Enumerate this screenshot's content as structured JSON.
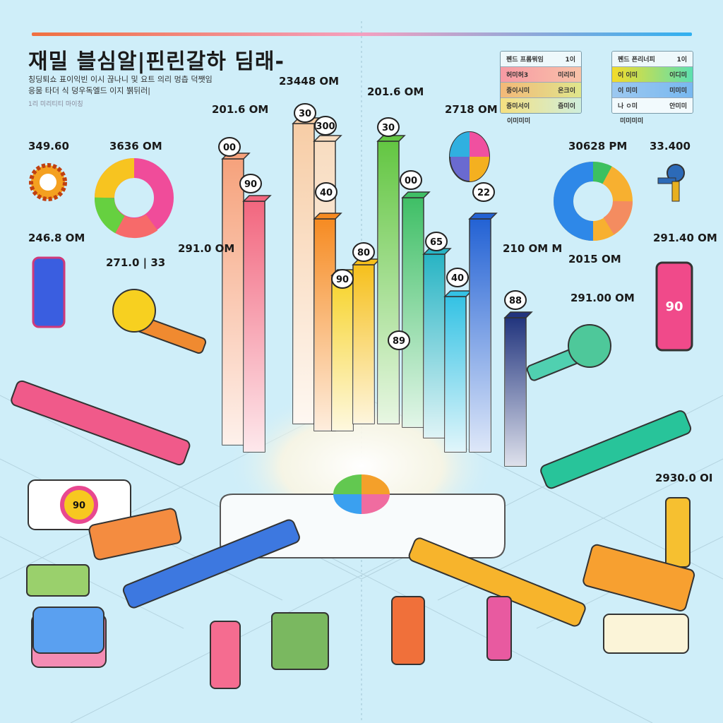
{
  "title": "재밀 블심알|핀린갈하 딤래-",
  "subtitle_lines": [
    "칭딩퇴쇼 표이익빈 이시 끊나니 및 요트 의리 멍츱 덕쨋임",
    "응뭄 타더 식 덩우독엘드 이지 뷁뒤러|",
    "1리 미리티티 마이칭"
  ],
  "legend_left": {
    "header": [
      "펜드 프롬뭐임",
      "1이"
    ],
    "rows": [
      [
        "허미허3",
        "미리미"
      ],
      [
        "죵이시미",
        "온크이"
      ],
      [
        "죵미서이",
        "즘미이"
      ]
    ],
    "colors": [
      "#f7a0a8",
      "#f4c080",
      "#e9e080"
    ],
    "footer": "이미미미"
  },
  "legend_right": {
    "header": [
      "펜드 픈리너피",
      "1이"
    ],
    "rows": [
      [
        "이 이미",
        "이디미"
      ],
      [
        "이 미미",
        "미미미"
      ],
      [
        "나 ㅇ미",
        "안미미"
      ]
    ],
    "colors": [
      "#f0e040",
      "#8cc4f0",
      "#f4fbfd"
    ],
    "footer": "미미미미"
  },
  "stats": [
    "23448 OM",
    "201.6 OM",
    "201.6 OM",
    "2718 OM",
    "349.60",
    "3636 OM",
    "30628 PM",
    "33.400",
    "246.8 OM",
    "271.0 | 33",
    "291.0 OM",
    "210 OM M",
    "2015 OM",
    "291.40 OM",
    "291.00 OM",
    "2930.0 OI"
  ],
  "bubbles": [
    "00",
    "90",
    "30",
    "300",
    "40",
    "90",
    "80",
    "30",
    "00",
    "65",
    "40",
    "22",
    "88",
    "89"
  ],
  "screen_labels": {
    "phone_right": "90",
    "tray_left": "90"
  },
  "colors": {
    "background": "#cfeef9",
    "bars": [
      "#f6a27c",
      "#f2677f",
      "#f7cda6",
      "#f8dcc0",
      "#f68b22",
      "#f7d32a",
      "#f6c01c",
      "#63c642",
      "#3fbf66",
      "#28b4c4",
      "#34c2e4",
      "#2362d4",
      "#22357e"
    ]
  }
}
